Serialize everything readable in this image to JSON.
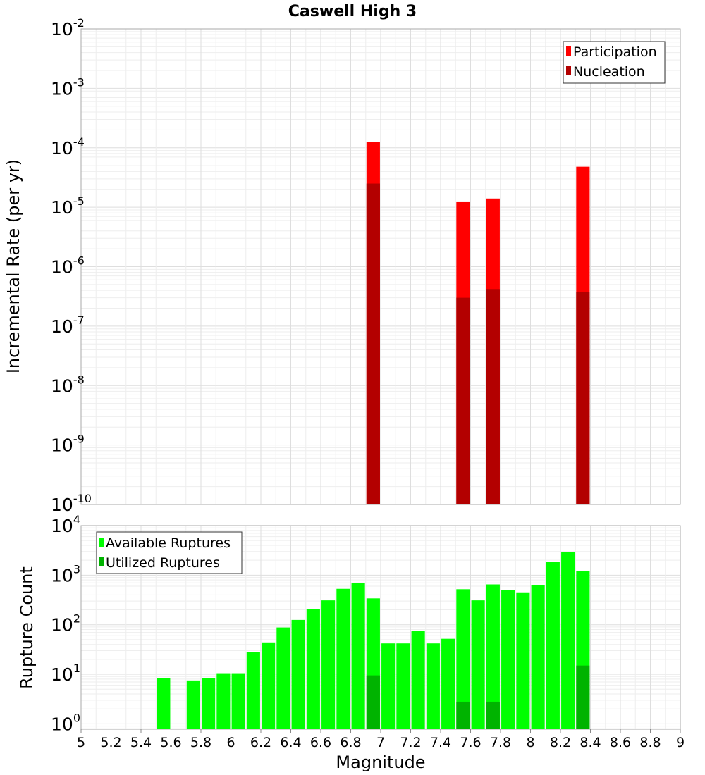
{
  "chart_data": [
    {
      "type": "bar",
      "title": "Caswell High 3",
      "xlabel": "Magnitude",
      "ylabel": "Incremental Rate (per yr)",
      "yscale": "log",
      "xlim": [
        5,
        9
      ],
      "ylim": [
        1e-10,
        0.01
      ],
      "bar_width": 0.09,
      "ytick_exponents": [
        "-2",
        "-3",
        "-4",
        "-5",
        "-6",
        "-7",
        "-8",
        "-9",
        "-10"
      ],
      "ytick_base": "10",
      "legend": {
        "position": "top-right",
        "entries": [
          "Participation",
          "Nucleation"
        ]
      },
      "series": [
        {
          "name": "Participation",
          "color": "#ff0000",
          "x": [
            6.95,
            7.55,
            7.75,
            8.35
          ],
          "values": [
            0.000125,
            1.25e-05,
            1.4e-05,
            4.8e-05
          ]
        },
        {
          "name": "Nucleation",
          "color": "#b30000",
          "x": [
            6.95,
            7.55,
            7.75,
            8.35
          ],
          "values": [
            2.5e-05,
            3e-07,
            4.2e-07,
            3.7e-07
          ]
        }
      ]
    },
    {
      "type": "bar",
      "title": "",
      "xlabel": "Magnitude",
      "ylabel": "Rupture Count",
      "yscale": "log",
      "xlim": [
        5,
        9
      ],
      "ylim": [
        0.78,
        10000
      ],
      "bar_width": 0.09,
      "ytick_exponents": [
        "4",
        "3",
        "2",
        "1",
        "0"
      ],
      "ytick_base": "10",
      "xticks": [
        "5",
        "5.2",
        "5.4",
        "5.6",
        "5.8",
        "6",
        "6.2",
        "6.4",
        "6.6",
        "6.8",
        "7",
        "7.2",
        "7.4",
        "7.6",
        "7.8",
        "8",
        "8.2",
        "8.4",
        "8.6",
        "8.8",
        "9"
      ],
      "legend": {
        "position": "top-left",
        "entries": [
          "Available Ruptures",
          "Utilized Ruptures"
        ]
      },
      "series": [
        {
          "name": "Available Ruptures",
          "color": "#00ff00",
          "x": [
            5.55,
            5.75,
            5.85,
            5.95,
            6.05,
            6.15,
            6.25,
            6.35,
            6.45,
            6.55,
            6.65,
            6.75,
            6.85,
            6.95,
            7.05,
            7.15,
            7.25,
            7.35,
            7.45,
            7.55,
            7.65,
            7.75,
            7.85,
            7.95,
            8.05,
            8.15,
            8.25,
            8.35
          ],
          "values": [
            8.5,
            7.5,
            8.5,
            10.5,
            10.5,
            28,
            44,
            88,
            125,
            210,
            310,
            530,
            700,
            340,
            42,
            42,
            76,
            42,
            52,
            520,
            310,
            650,
            500,
            450,
            640,
            1850,
            2900,
            1200
          ]
        },
        {
          "name": "Utilized Ruptures",
          "color": "#00b300",
          "x": [
            6.95,
            7.55,
            7.75,
            8.35
          ],
          "values": [
            9.5,
            2.8,
            2.8,
            15
          ]
        }
      ]
    }
  ]
}
